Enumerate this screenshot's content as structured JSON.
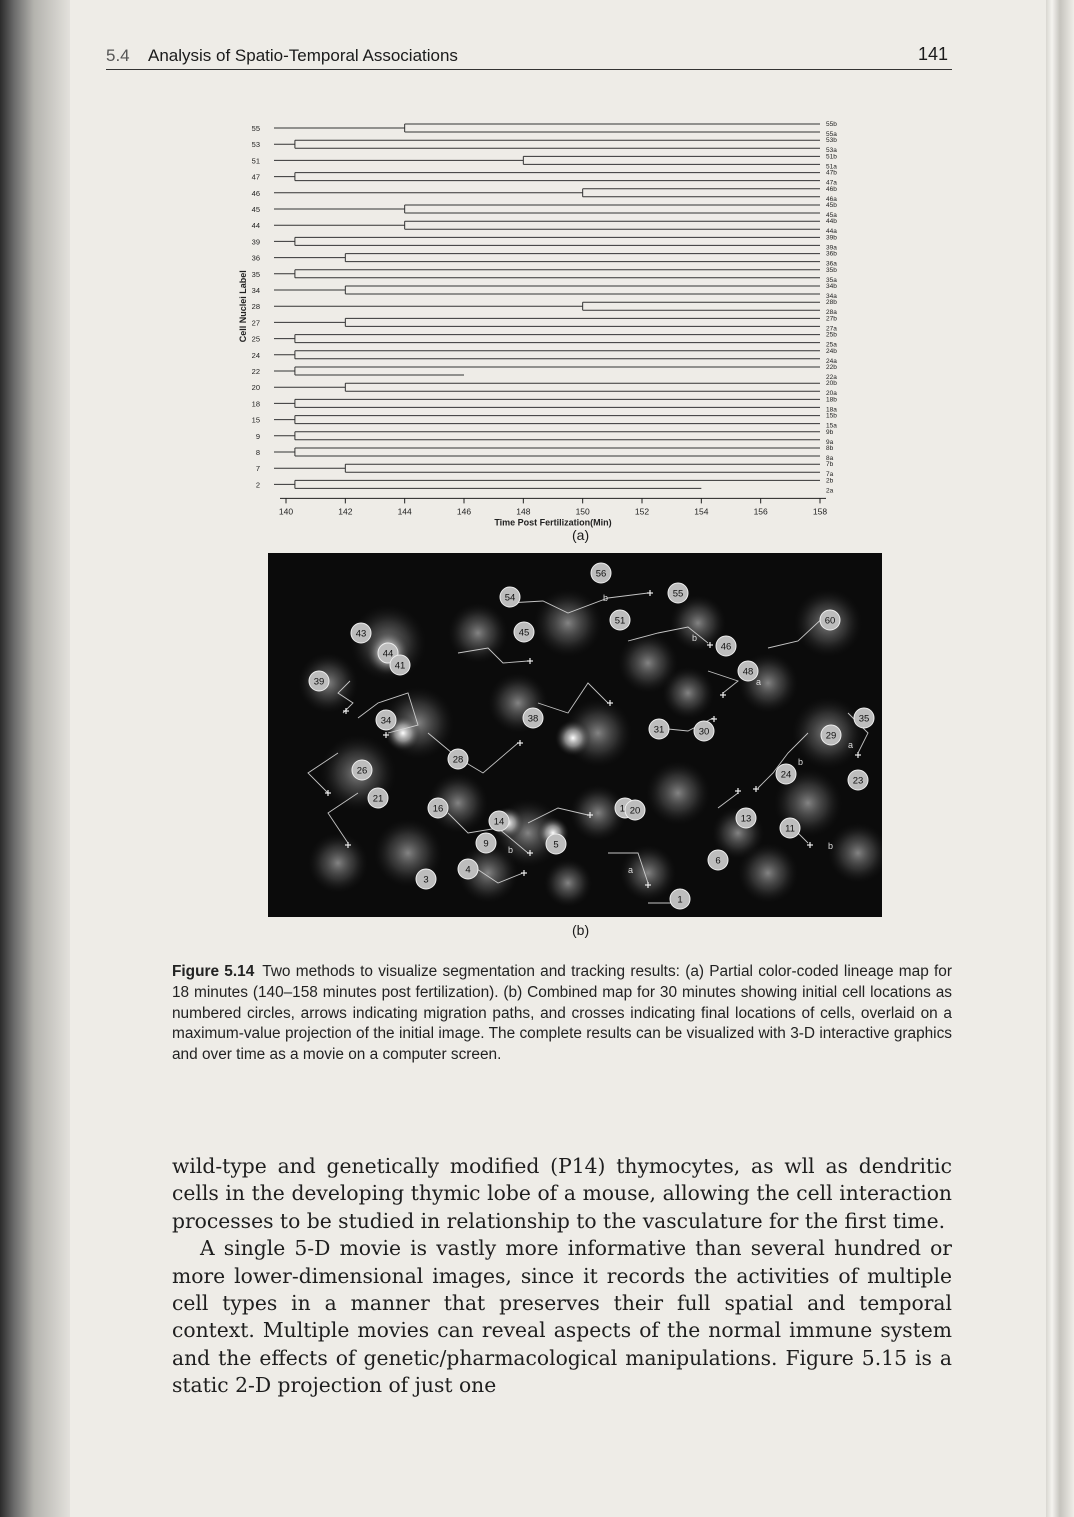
{
  "header": {
    "section_number": "5.4",
    "section_title": "Analysis of Spatio-Temporal Associations",
    "page_number": "141"
  },
  "figure_a": {
    "sublabel": "(a)",
    "chart_data": {
      "type": "lineage",
      "xlabel": "Time Post Fertilization(Min)",
      "ylabel": "Cell Nuclei Label",
      "xlim": [
        140,
        158
      ],
      "x_ticks": [
        "140",
        "142",
        "144",
        "146",
        "148",
        "150",
        "152",
        "154",
        "156",
        "158"
      ],
      "cells": [
        {
          "label": "55",
          "division_time": 144,
          "end_time": 158,
          "daughters": [
            "55b",
            "55a"
          ]
        },
        {
          "label": "53",
          "division_time": 140.3,
          "end_time": 158,
          "daughters": [
            "53b",
            "53a"
          ]
        },
        {
          "label": "51",
          "division_time": 148,
          "end_time": 158,
          "daughters": [
            "51b",
            "51a"
          ]
        },
        {
          "label": "47",
          "division_time": 140.3,
          "end_time": 158,
          "daughters": [
            "47b",
            "47a"
          ]
        },
        {
          "label": "46",
          "division_time": 150,
          "end_time": 158,
          "daughters": [
            "46b",
            "46a"
          ]
        },
        {
          "label": "45",
          "division_time": 144,
          "end_time": 158,
          "daughters": [
            "45b",
            "45a"
          ]
        },
        {
          "label": "44",
          "division_time": 144,
          "end_time": 158,
          "daughters": [
            "44b",
            "44a"
          ]
        },
        {
          "label": "39",
          "division_time": 140.3,
          "end_time": 158,
          "daughters": [
            "39b",
            "39a"
          ]
        },
        {
          "label": "36",
          "division_time": 142,
          "end_time": 158,
          "daughters": [
            "36b",
            "36a"
          ]
        },
        {
          "label": "35",
          "division_time": 140.3,
          "end_time": 158,
          "daughters": [
            "35b",
            "35a"
          ]
        },
        {
          "label": "34",
          "division_time": 142,
          "end_time": 158,
          "daughters": [
            "34b",
            "34a"
          ]
        },
        {
          "label": "28",
          "division_time": 150,
          "end_time": 158,
          "daughters": [
            "28b",
            "28a"
          ]
        },
        {
          "label": "27",
          "division_time": 142,
          "end_time": 158,
          "daughters": [
            "27b",
            "27a"
          ]
        },
        {
          "label": "25",
          "division_time": 140.3,
          "end_time": 158,
          "daughters": [
            "25b",
            "25a"
          ]
        },
        {
          "label": "24",
          "division_time": 140.3,
          "end_time": 158,
          "daughters": [
            "24b",
            "24a"
          ]
        },
        {
          "label": "22",
          "division_time": 140.3,
          "end_time": 158,
          "daughters": [
            "22b",
            "22a"
          ],
          "a_end_time": 146
        },
        {
          "label": "20",
          "division_time": 142,
          "end_time": 158,
          "daughters": [
            "20b",
            "20a"
          ]
        },
        {
          "label": "18",
          "division_time": 140.3,
          "end_time": 158,
          "daughters": [
            "18b",
            "18a"
          ]
        },
        {
          "label": "15",
          "division_time": 140.3,
          "end_time": 158,
          "daughters": [
            "15b",
            "15a"
          ]
        },
        {
          "label": "9",
          "division_time": 140.3,
          "end_time": 158,
          "daughters": [
            "9b",
            "9a"
          ]
        },
        {
          "label": "8",
          "division_time": 140.3,
          "end_time": 158,
          "daughters": [
            "8b",
            "8a"
          ]
        },
        {
          "label": "7",
          "division_time": 142,
          "end_time": 158,
          "daughters": [
            "7b",
            "7a"
          ]
        },
        {
          "label": "2",
          "division_time": 140.3,
          "end_time": 158,
          "daughters": [
            "2b",
            "2a"
          ],
          "a_end_time": 154
        }
      ]
    }
  },
  "figure_b": {
    "sublabel": "(b)",
    "cells": [
      {
        "label": "56"
      },
      {
        "label": "54"
      },
      {
        "label": "55"
      },
      {
        "label": "45"
      },
      {
        "label": "51"
      },
      {
        "label": "60"
      },
      {
        "label": "43"
      },
      {
        "label": "44"
      },
      {
        "label": "41"
      },
      {
        "label": "39"
      },
      {
        "label": "46"
      },
      {
        "label": "48"
      },
      {
        "label": "34"
      },
      {
        "label": "38"
      },
      {
        "label": "31"
      },
      {
        "label": "30"
      },
      {
        "label": "35"
      },
      {
        "label": "29"
      },
      {
        "label": "26"
      },
      {
        "label": "28"
      },
      {
        "label": "24"
      },
      {
        "label": "23"
      },
      {
        "label": "21"
      },
      {
        "label": "16"
      },
      {
        "label": "14"
      },
      {
        "label": "19"
      },
      {
        "label": "20"
      },
      {
        "label": "13"
      },
      {
        "label": "11"
      },
      {
        "label": "9"
      },
      {
        "label": "5"
      },
      {
        "label": "4"
      },
      {
        "label": "3"
      },
      {
        "label": "6"
      },
      {
        "label": "1"
      }
    ],
    "path_labels": [
      "b",
      "a"
    ]
  },
  "caption": {
    "label": "Figure 5.14",
    "text": "Two methods to visualize segmentation and tracking results: (a) Partial color-coded lineage map for 18 minutes (140–158 minutes post fertilization). (b) Combined map for 30 minutes showing initial cell locations as numbered circles, arrows indicating migration paths, and crosses indicating final locations of cells, overlaid on a maximum-value projection of the initial image. The complete results can be visualized with 3-D interactive graphics and over time as a movie on a computer screen."
  },
  "body": {
    "paragraph_1": "wild-type and genetically modified (P14) thymocytes, as wll as dendritic cells in the developing thymic lobe of a mouse, allowing the cell interaction processes to be studied in relationship to the vasculature for the first time.",
    "paragraph_2": "A single 5-D movie is vastly more informative than several hundred or more lower-dimensional images, since it records the activities of multiple cell types in a manner that preserves their full spatial and temporal context. Multiple movies can reveal aspects of the normal immune system and the effects of genetic/pharmacological manipulations. Figure 5.15 is a static 2-D projection of just one"
  }
}
